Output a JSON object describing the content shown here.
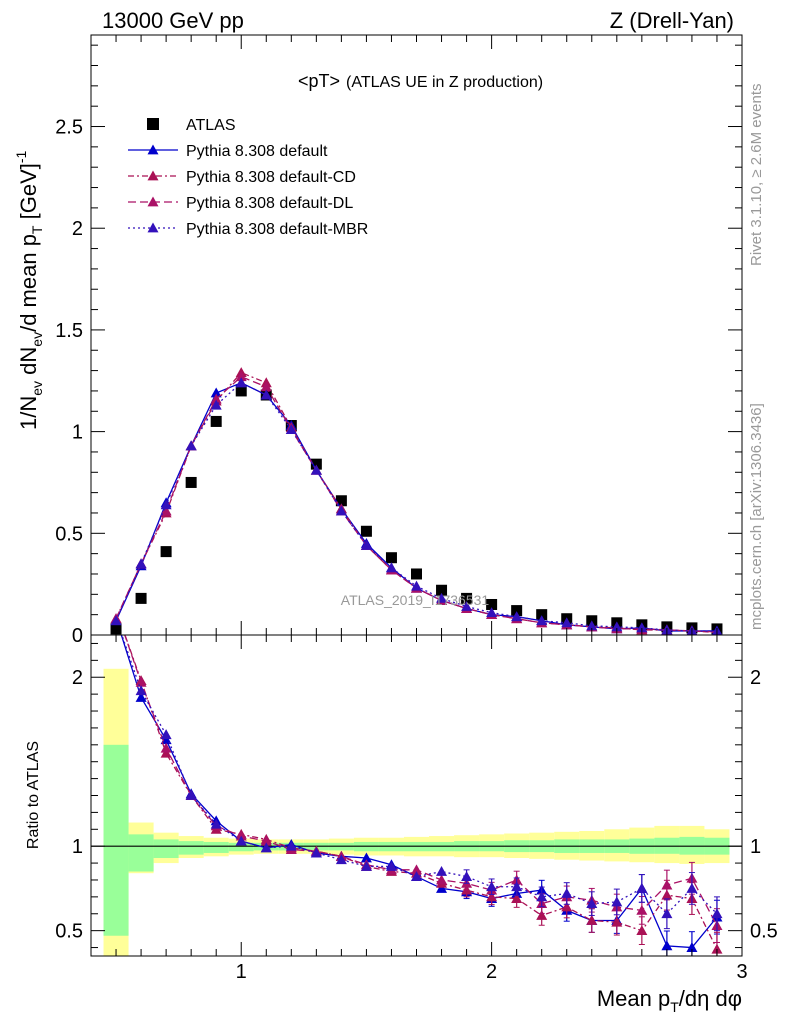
{
  "header": {
    "left": "13000 GeV pp",
    "right": "Z (Drell-Yan)",
    "title_main": "<pT>",
    "title_sub": "(ATLAS UE in Z production)",
    "watermark": "ATLAS_2019_I1736531",
    "side_rivet": "Rivet 3.1.10, ≥ 2.6M events",
    "side_mcplots": "mcplots.cern.ch [arXiv:1306.3436]"
  },
  "chart_data": [
    {
      "type": "scatter",
      "title": "<pT> (ATLAS UE in Z production)",
      "ylabel": "1/Nev dNev/d mean pT [GeV]-1",
      "xlabel": "Mean pT/dη dφ",
      "xlim": [
        0.4,
        3.0
      ],
      "ylim": [
        0,
        2.95
      ],
      "x_ticks": [
        1,
        2,
        3
      ],
      "y_ticks": [
        0,
        0.5,
        1,
        1.5,
        2,
        2.5
      ],
      "legend_position": "top-left",
      "x": [
        0.5,
        0.6,
        0.7,
        0.8,
        0.9,
        1.0,
        1.1,
        1.2,
        1.3,
        1.4,
        1.5,
        1.6,
        1.7,
        1.8,
        1.9,
        2.0,
        2.1,
        2.2,
        2.3,
        2.4,
        2.5,
        2.6,
        2.7,
        2.8,
        2.9
      ],
      "series": [
        {
          "name": "ATLAS",
          "style": "data",
          "color": "#000000",
          "values": [
            0.03,
            0.18,
            0.41,
            0.75,
            1.05,
            1.2,
            1.18,
            1.03,
            0.84,
            0.66,
            0.51,
            0.38,
            0.3,
            0.22,
            0.18,
            0.15,
            0.12,
            0.1,
            0.08,
            0.07,
            0.06,
            0.05,
            0.04,
            0.035,
            0.03
          ]
        },
        {
          "name": "Pythia 8.308 default",
          "style": "solid",
          "color": "#0000cc",
          "values": [
            0.07,
            0.34,
            0.65,
            0.93,
            1.19,
            1.24,
            1.18,
            1.03,
            0.81,
            0.62,
            0.45,
            0.33,
            0.23,
            0.17,
            0.13,
            0.1,
            0.09,
            0.07,
            0.05,
            0.04,
            0.03,
            0.035,
            0.02,
            0.02,
            0.02
          ]
        },
        {
          "name": "Pythia 8.308 default-CD",
          "style": "dashdot",
          "color": "#aa1155",
          "values": [
            0.08,
            0.35,
            0.6,
            0.93,
            1.15,
            1.29,
            1.24,
            1.02,
            0.81,
            0.62,
            0.44,
            0.32,
            0.23,
            0.17,
            0.13,
            0.1,
            0.08,
            0.06,
            0.05,
            0.04,
            0.035,
            0.025,
            0.025,
            0.02,
            0.012
          ]
        },
        {
          "name": "Pythia 8.308 default-DL",
          "style": "dashed",
          "color": "#aa1166",
          "values": [
            0.08,
            0.35,
            0.61,
            0.93,
            1.16,
            1.27,
            1.22,
            1.01,
            0.81,
            0.61,
            0.44,
            0.32,
            0.23,
            0.17,
            0.13,
            0.1,
            0.08,
            0.06,
            0.05,
            0.04,
            0.03,
            0.03,
            0.025,
            0.02,
            0.015
          ]
        },
        {
          "name": "Pythia 8.308 default-MBR",
          "style": "dotted",
          "color": "#3311bb",
          "values": [
            0.07,
            0.35,
            0.64,
            0.93,
            1.13,
            1.24,
            1.18,
            1.01,
            0.81,
            0.61,
            0.44,
            0.33,
            0.24,
            0.18,
            0.14,
            0.11,
            0.09,
            0.07,
            0.06,
            0.045,
            0.04,
            0.035,
            0.025,
            0.02,
            0.018
          ]
        }
      ]
    },
    {
      "type": "line",
      "ylabel": "Ratio to ATLAS",
      "xlabel": "Mean pT/dη dφ",
      "xlim": [
        0.4,
        3.0
      ],
      "ylim": [
        0.35,
        2.25
      ],
      "y_ticks": [
        0.5,
        1,
        2
      ],
      "reference_line": 1,
      "band_inner_color": "#99ff99",
      "band_outer_color": "#ffff99",
      "band_inner": [
        [
          0.47,
          1.6
        ],
        [
          0.85,
          1.07
        ],
        [
          0.93,
          1.04
        ],
        [
          0.95,
          1.03
        ],
        [
          0.96,
          1.025
        ],
        [
          0.97,
          1.02
        ],
        [
          0.975,
          1.02
        ],
        [
          0.975,
          1.02
        ],
        [
          0.975,
          1.02
        ],
        [
          0.975,
          1.02
        ],
        [
          0.97,
          1.025
        ],
        [
          0.97,
          1.025
        ],
        [
          0.97,
          1.025
        ],
        [
          0.97,
          1.025
        ],
        [
          0.97,
          1.03
        ],
        [
          0.97,
          1.03
        ],
        [
          0.965,
          1.035
        ],
        [
          0.965,
          1.035
        ],
        [
          0.96,
          1.04
        ],
        [
          0.96,
          1.04
        ],
        [
          0.96,
          1.04
        ],
        [
          0.955,
          1.045
        ],
        [
          0.955,
          1.05
        ],
        [
          0.95,
          1.055
        ],
        [
          0.95,
          1.05
        ]
      ],
      "band_outer": [
        [
          0.3,
          2.05
        ],
        [
          0.84,
          1.14
        ],
        [
          0.9,
          1.08
        ],
        [
          0.93,
          1.06
        ],
        [
          0.94,
          1.05
        ],
        [
          0.95,
          1.045
        ],
        [
          0.955,
          1.04
        ],
        [
          0.955,
          1.04
        ],
        [
          0.955,
          1.04
        ],
        [
          0.95,
          1.045
        ],
        [
          0.945,
          1.05
        ],
        [
          0.945,
          1.05
        ],
        [
          0.94,
          1.055
        ],
        [
          0.94,
          1.06
        ],
        [
          0.935,
          1.065
        ],
        [
          0.935,
          1.07
        ],
        [
          0.93,
          1.075
        ],
        [
          0.925,
          1.08
        ],
        [
          0.92,
          1.085
        ],
        [
          0.915,
          1.09
        ],
        [
          0.91,
          1.1
        ],
        [
          0.905,
          1.11
        ],
        [
          0.9,
          1.12
        ],
        [
          0.895,
          1.12
        ],
        [
          0.9,
          1.1
        ]
      ],
      "series": [
        {
          "name": "Pythia 8.308 default",
          "style": "solid",
          "color": "#0000cc",
          "values": [
            2.35,
            1.88,
            1.63,
            1.31,
            1.15,
            1.03,
            0.99,
            1.01,
            0.96,
            0.94,
            0.93,
            0.89,
            0.82,
            0.75,
            0.73,
            0.69,
            0.72,
            0.74,
            0.62,
            0.56,
            0.56,
            0.75,
            0.41,
            0.4,
            0.58
          ]
        },
        {
          "name": "Pythia 8.308 default-CD",
          "style": "dashdot",
          "color": "#aa1155",
          "values": [
            2.4,
            1.98,
            1.55,
            1.3,
            1.1,
            1.07,
            1.04,
            0.99,
            0.97,
            0.94,
            0.88,
            0.85,
            0.84,
            0.78,
            0.74,
            0.7,
            0.69,
            0.59,
            0.64,
            0.56,
            0.55,
            0.5,
            0.71,
            0.69,
            0.39
          ]
        },
        {
          "name": "Pythia 8.308 default-DL",
          "style": "dashed",
          "color": "#aa1166",
          "values": [
            2.4,
            1.97,
            1.58,
            1.3,
            1.12,
            1.06,
            1.03,
            0.98,
            0.97,
            0.94,
            0.89,
            0.86,
            0.86,
            0.8,
            0.78,
            0.74,
            0.8,
            0.66,
            0.7,
            0.68,
            0.64,
            0.62,
            0.77,
            0.81,
            0.53
          ]
        },
        {
          "name": "Pythia 8.308 default-MBR",
          "style": "dotted",
          "color": "#3311bb",
          "values": [
            2.35,
            1.92,
            1.66,
            1.3,
            1.13,
            1.03,
            0.99,
            1.0,
            0.96,
            0.92,
            0.88,
            0.88,
            0.82,
            0.85,
            0.82,
            0.76,
            0.76,
            0.7,
            0.72,
            0.66,
            0.67,
            0.75,
            0.6,
            0.75,
            0.6
          ]
        }
      ]
    }
  ]
}
